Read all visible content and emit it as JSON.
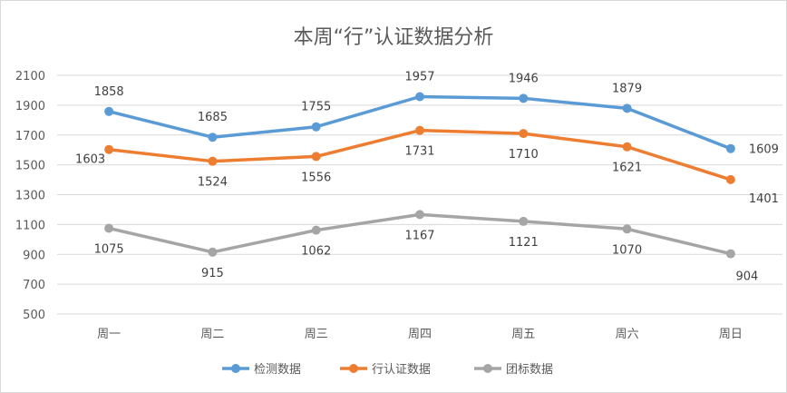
{
  "chart_data": {
    "type": "line",
    "title": "本周“行”认证数据分析",
    "categories": [
      "周一",
      "周二",
      "周三",
      "周四",
      "周五",
      "周六",
      "周日"
    ],
    "ylim": [
      500,
      2100
    ],
    "yticks": [
      500,
      700,
      900,
      1100,
      1300,
      1500,
      1700,
      1900,
      2100
    ],
    "grid": true,
    "legend": "bottom",
    "series": [
      {
        "name": "检测数据",
        "color": "#5b9bd5",
        "values": [
          1858,
          1685,
          1755,
          1957,
          1946,
          1879,
          1609
        ]
      },
      {
        "name": "行认证数据",
        "color": "#ed7d31",
        "values": [
          1603,
          1524,
          1556,
          1731,
          1710,
          1621,
          1401
        ]
      },
      {
        "name": "团标数据",
        "color": "#a5a5a5",
        "values": [
          1075,
          915,
          1062,
          1167,
          1121,
          1070,
          904
        ]
      }
    ]
  }
}
